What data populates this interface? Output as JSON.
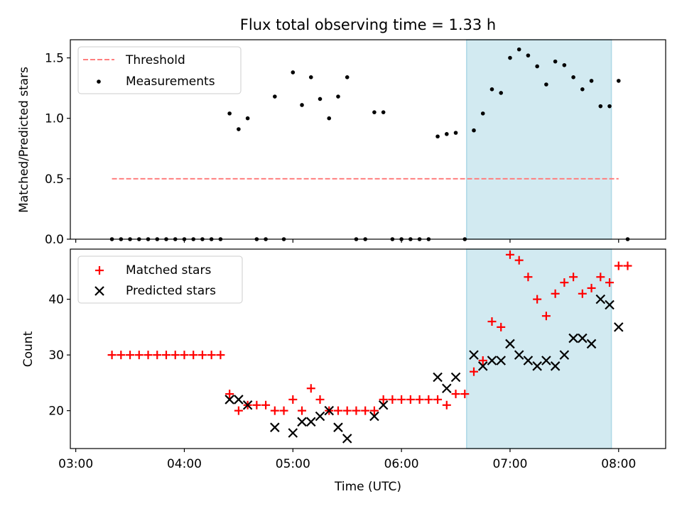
{
  "title": "Flux total observing time = 1.33 h",
  "colors": {
    "threshold": "#ff7f7f",
    "measurement": "#000000",
    "matched": "#ff0000",
    "predicted": "#000000",
    "span": "#add8e6"
  },
  "chart_data": [
    {
      "type": "scatter",
      "ylabel": "Matched/Predicted stars",
      "ylim": [
        0,
        1.65
      ],
      "yticks": [
        0.0,
        0.5,
        1.0,
        1.5
      ],
      "ytick_labels": [
        "0.0",
        "0.5",
        "1.0",
        "1.5"
      ],
      "grid": false,
      "legend_placement": "upper-left",
      "highlight_span": {
        "x0": "06:36",
        "x1": "07:56"
      },
      "threshold": {
        "name": "Threshold",
        "y": 0.5,
        "x0": "03:20",
        "x1": "08:00"
      },
      "series": [
        {
          "name": "Measurements",
          "points": [
            [
              "03:20",
              0
            ],
            [
              "03:25",
              0
            ],
            [
              "03:30",
              0
            ],
            [
              "03:35",
              0
            ],
            [
              "03:40",
              0
            ],
            [
              "03:45",
              0
            ],
            [
              "03:50",
              0
            ],
            [
              "03:55",
              0
            ],
            [
              "04:00",
              0
            ],
            [
              "04:05",
              0
            ],
            [
              "04:10",
              0
            ],
            [
              "04:15",
              0
            ],
            [
              "04:20",
              0
            ],
            [
              "04:25",
              1.04
            ],
            [
              "04:30",
              0.91
            ],
            [
              "04:35",
              1.0
            ],
            [
              "04:40",
              0
            ],
            [
              "04:45",
              0
            ],
            [
              "04:50",
              1.18
            ],
            [
              "04:55",
              0
            ],
            [
              "05:00",
              1.38
            ],
            [
              "05:05",
              1.11
            ],
            [
              "05:10",
              1.34
            ],
            [
              "05:15",
              1.16
            ],
            [
              "05:20",
              1.0
            ],
            [
              "05:25",
              1.18
            ],
            [
              "05:30",
              1.34
            ],
            [
              "05:35",
              0
            ],
            [
              "05:40",
              0
            ],
            [
              "05:45",
              1.05
            ],
            [
              "05:50",
              1.05
            ],
            [
              "05:55",
              0
            ],
            [
              "06:00",
              0
            ],
            [
              "06:05",
              0
            ],
            [
              "06:10",
              0
            ],
            [
              "06:15",
              0
            ],
            [
              "06:20",
              0.85
            ],
            [
              "06:25",
              0.87
            ],
            [
              "06:30",
              0.88
            ],
            [
              "06:35",
              0
            ],
            [
              "06:40",
              0.9
            ],
            [
              "06:45",
              1.04
            ],
            [
              "06:50",
              1.24
            ],
            [
              "06:55",
              1.21
            ],
            [
              "07:00",
              1.5
            ],
            [
              "07:05",
              1.57
            ],
            [
              "07:10",
              1.52
            ],
            [
              "07:15",
              1.43
            ],
            [
              "07:20",
              1.28
            ],
            [
              "07:25",
              1.47
            ],
            [
              "07:30",
              1.44
            ],
            [
              "07:35",
              1.34
            ],
            [
              "07:40",
              1.24
            ],
            [
              "07:45",
              1.31
            ],
            [
              "07:50",
              1.1
            ],
            [
              "07:55",
              1.1
            ],
            [
              "08:00",
              1.31
            ],
            [
              "08:05",
              0
            ]
          ]
        }
      ]
    },
    {
      "type": "scatter",
      "xlabel": "Time (UTC)",
      "ylabel": "Count",
      "ylim": [
        13.2,
        49
      ],
      "yticks": [
        20,
        30,
        40
      ],
      "xlim": [
        "02:57",
        "08:26"
      ],
      "xticks": [
        "03:00",
        "04:00",
        "05:00",
        "06:00",
        "07:00",
        "08:00"
      ],
      "grid": false,
      "legend_placement": "upper-left",
      "highlight_span": {
        "x0": "06:36",
        "x1": "07:56"
      },
      "series": [
        {
          "name": "Matched stars",
          "marker": "plus",
          "points": [
            [
              "03:20",
              30
            ],
            [
              "03:25",
              30
            ],
            [
              "03:30",
              30
            ],
            [
              "03:35",
              30
            ],
            [
              "03:40",
              30
            ],
            [
              "03:45",
              30
            ],
            [
              "03:50",
              30
            ],
            [
              "03:55",
              30
            ],
            [
              "04:00",
              30
            ],
            [
              "04:05",
              30
            ],
            [
              "04:10",
              30
            ],
            [
              "04:15",
              30
            ],
            [
              "04:20",
              30
            ],
            [
              "04:25",
              23
            ],
            [
              "04:30",
              20
            ],
            [
              "04:35",
              21
            ],
            [
              "04:40",
              21
            ],
            [
              "04:45",
              21
            ],
            [
              "04:50",
              20
            ],
            [
              "04:55",
              20
            ],
            [
              "05:00",
              22
            ],
            [
              "05:05",
              20
            ],
            [
              "05:10",
              24
            ],
            [
              "05:15",
              22
            ],
            [
              "05:20",
              20
            ],
            [
              "05:25",
              20
            ],
            [
              "05:30",
              20
            ],
            [
              "05:35",
              20
            ],
            [
              "05:40",
              20
            ],
            [
              "05:45",
              20
            ],
            [
              "05:50",
              22
            ],
            [
              "05:55",
              22
            ],
            [
              "06:00",
              22
            ],
            [
              "06:05",
              22
            ],
            [
              "06:10",
              22
            ],
            [
              "06:15",
              22
            ],
            [
              "06:20",
              22
            ],
            [
              "06:25",
              21
            ],
            [
              "06:30",
              23
            ],
            [
              "06:35",
              23
            ],
            [
              "06:40",
              27
            ],
            [
              "06:45",
              29
            ],
            [
              "06:50",
              36
            ],
            [
              "06:55",
              35
            ],
            [
              "07:00",
              48
            ],
            [
              "07:05",
              47
            ],
            [
              "07:10",
              44
            ],
            [
              "07:15",
              40
            ],
            [
              "07:20",
              37
            ],
            [
              "07:25",
              41
            ],
            [
              "07:30",
              43
            ],
            [
              "07:35",
              44
            ],
            [
              "07:40",
              41
            ],
            [
              "07:45",
              42
            ],
            [
              "07:50",
              44
            ],
            [
              "07:55",
              43
            ],
            [
              "08:00",
              46
            ],
            [
              "08:05",
              46
            ]
          ]
        },
        {
          "name": "Predicted stars",
          "marker": "x",
          "points": [
            [
              "04:25",
              22
            ],
            [
              "04:30",
              22
            ],
            [
              "04:35",
              21
            ],
            [
              "04:50",
              17
            ],
            [
              "05:00",
              16
            ],
            [
              "05:05",
              18
            ],
            [
              "05:10",
              18
            ],
            [
              "05:15",
              19
            ],
            [
              "05:20",
              20
            ],
            [
              "05:25",
              17
            ],
            [
              "05:30",
              15
            ],
            [
              "05:45",
              19
            ],
            [
              "05:50",
              21
            ],
            [
              "06:20",
              26
            ],
            [
              "06:25",
              24
            ],
            [
              "06:30",
              26
            ],
            [
              "06:40",
              30
            ],
            [
              "06:45",
              28
            ],
            [
              "06:50",
              29
            ],
            [
              "06:55",
              29
            ],
            [
              "07:00",
              32
            ],
            [
              "07:05",
              30
            ],
            [
              "07:10",
              29
            ],
            [
              "07:15",
              28
            ],
            [
              "07:20",
              29
            ],
            [
              "07:25",
              28
            ],
            [
              "07:30",
              30
            ],
            [
              "07:35",
              33
            ],
            [
              "07:40",
              33
            ],
            [
              "07:45",
              32
            ],
            [
              "07:50",
              40
            ],
            [
              "07:55",
              39
            ],
            [
              "08:00",
              35
            ]
          ]
        }
      ]
    }
  ]
}
